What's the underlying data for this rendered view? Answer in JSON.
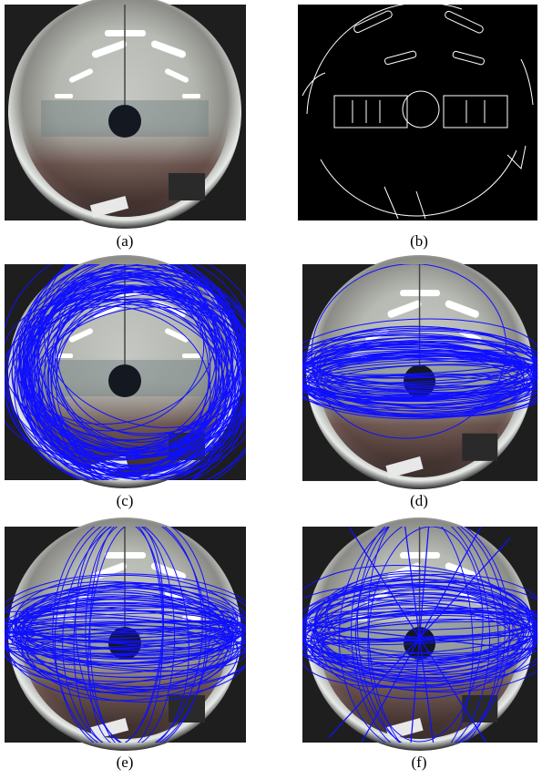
{
  "panels": [
    {
      "caption": "(a)"
    },
    {
      "caption": "(b)"
    },
    {
      "caption": "(c)"
    },
    {
      "caption": "(d)"
    },
    {
      "caption": "(e)"
    },
    {
      "caption": "(f)"
    }
  ]
}
